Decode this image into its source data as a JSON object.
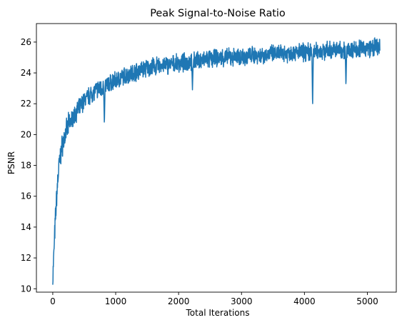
{
  "chart_data": {
    "type": "line",
    "title": "Peak Signal-to-Noise Ratio",
    "xlabel": "Total Iterations",
    "ylabel": "PSNR",
    "xlim": [
      -260,
      5460
    ],
    "ylim": [
      9.78,
      27.2
    ],
    "xticks": [
      0,
      1000,
      2000,
      3000,
      4000,
      5000
    ],
    "xtick_labels": [
      "0",
      "1000",
      "2000",
      "3000",
      "4000",
      "5000"
    ],
    "yticks": [
      10,
      12,
      14,
      16,
      18,
      20,
      22,
      24,
      26
    ],
    "ytick_labels": [
      "10",
      "12",
      "14",
      "16",
      "18",
      "20",
      "22",
      "24",
      "26"
    ],
    "grid": false,
    "series": [
      {
        "color": "#1f77b4",
        "x": [
          0,
          25,
          50,
          75,
          100,
          150,
          200,
          250,
          300,
          400,
          500,
          600,
          700,
          800,
          900,
          1000,
          1200,
          1400,
          1600,
          1800,
          2000,
          2200,
          2400,
          2600,
          2800,
          3000,
          3200,
          3400,
          3600,
          3800,
          4000,
          4200,
          4400,
          4600,
          4800,
          5000,
          5150,
          5200
        ],
        "y": [
          10.6,
          13.0,
          15.2,
          16.8,
          18.0,
          19.3,
          20.0,
          20.6,
          21.0,
          21.6,
          22.2,
          22.6,
          22.9,
          23.1,
          23.3,
          23.5,
          23.9,
          24.2,
          24.4,
          24.5,
          24.6,
          24.75,
          24.85,
          24.95,
          25.0,
          25.05,
          25.15,
          25.2,
          25.25,
          25.3,
          25.35,
          25.4,
          25.45,
          25.5,
          25.55,
          25.6,
          25.65,
          25.6
        ],
        "dips": [
          {
            "x": 820,
            "y": 20.6
          },
          {
            "x": 4130,
            "y": 21.7
          },
          {
            "x": 4660,
            "y": 23.1
          },
          {
            "x": 2220,
            "y": 22.9
          }
        ],
        "band_halfwidth": 0.45
      }
    ]
  }
}
